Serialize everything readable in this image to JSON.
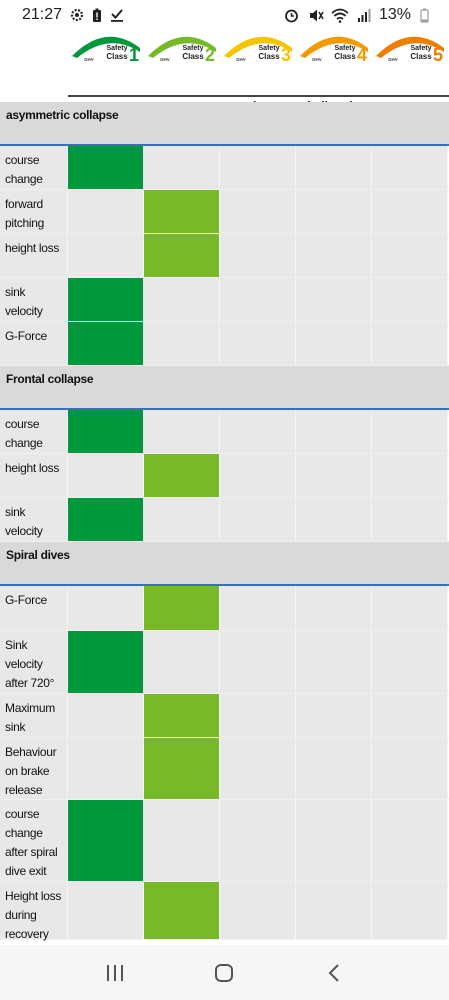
{
  "status_bar": {
    "time": "21:27",
    "left_icons": [
      "gear-icon",
      "battery-alert-icon",
      "check-download-icon"
    ],
    "right_icons": [
      "alarm-icon",
      "mute-icon",
      "wifi-icon",
      "signal-icon"
    ],
    "battery": "13%"
  },
  "logos": [
    {
      "safety": "Safety",
      "class": "Class",
      "num": "1",
      "brand": "DHV",
      "color": "#00983a"
    },
    {
      "safety": "Safety",
      "class": "Class",
      "num": "2",
      "brand": "DHV",
      "color": "#77b928"
    },
    {
      "safety": "Safety",
      "class": "Class",
      "num": "3",
      "brand": "DHV",
      "color": "#f7c400"
    },
    {
      "safety": "Safety",
      "class": "Class",
      "num": "4",
      "brand": "DHV",
      "color": "#f39a00"
    },
    {
      "safety": "Safety",
      "class": "Class",
      "num": "5",
      "brand": "DHV",
      "color": "#ee7d00"
    }
  ],
  "columns": [
    "very easy",
    "easy",
    "moderate",
    "challenging",
    "very challenging"
  ],
  "colors": {
    "level1": "#00983a",
    "level2": "#77b928",
    "empty": "#e8e8e8",
    "section_line": "#3b6cc4"
  },
  "sections": [
    {
      "title": "asymmetric collapse",
      "rows": [
        {
          "label": "course change",
          "level": 1
        },
        {
          "label": "forward pitching",
          "level": 2
        },
        {
          "label": "height loss",
          "level": 2
        },
        {
          "label": "sink velocity",
          "level": 1
        },
        {
          "label": "G-Force",
          "level": 1
        }
      ]
    },
    {
      "title": "Frontal collapse",
      "rows": [
        {
          "label": "course change",
          "level": 1
        },
        {
          "label": "height loss",
          "level": 2
        },
        {
          "label": "sink velocity",
          "level": 1
        }
      ]
    },
    {
      "title": "Spiral dives",
      "rows": [
        {
          "label": "G-Force",
          "level": 2
        },
        {
          "label": "Sink velocity after 720°",
          "level": 1
        },
        {
          "label": "Maximum sink velocity",
          "level": 2
        },
        {
          "label": "Behaviour on brake release",
          "level": 2
        },
        {
          "label": "course change after spiral dive exit",
          "level": 1
        },
        {
          "label": "Height loss during recovery",
          "level": 2
        }
      ]
    }
  ],
  "nav_bar": [
    "recent-apps-icon",
    "home-icon",
    "back-icon"
  ]
}
